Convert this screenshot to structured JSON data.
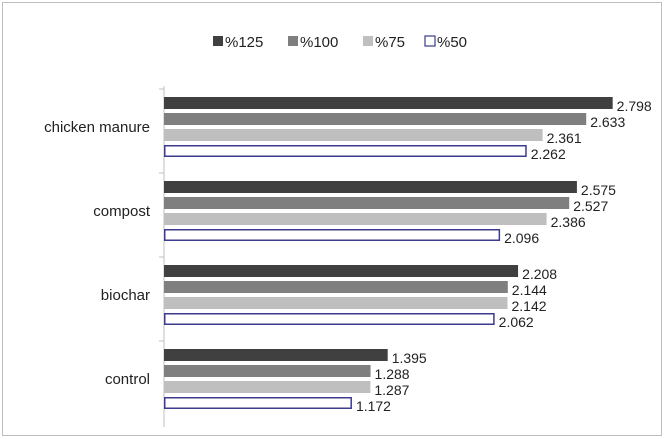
{
  "chart_data": {
    "type": "bar",
    "orientation": "horizontal",
    "categories": [
      "chicken manure",
      "compost",
      "biochar",
      "control"
    ],
    "series": [
      {
        "name": "%125",
        "color": "#404040",
        "fill": "solid",
        "values": [
          2.798,
          2.575,
          2.208,
          1.395
        ]
      },
      {
        "name": "%100",
        "color": "#7f7f7f",
        "fill": "solid",
        "values": [
          2.633,
          2.527,
          2.144,
          1.288
        ]
      },
      {
        "name": "%75",
        "color": "#bfbfbf",
        "fill": "solid",
        "values": [
          2.361,
          2.386,
          2.142,
          1.287
        ]
      },
      {
        "name": "%50",
        "color": "#3b3b8f",
        "fill": "outline",
        "values": [
          2.262,
          2.096,
          2.062,
          1.172
        ]
      }
    ],
    "xlim": [
      0,
      2.8
    ],
    "grid": false,
    "legend_position": "top-center",
    "data_labels": true
  }
}
